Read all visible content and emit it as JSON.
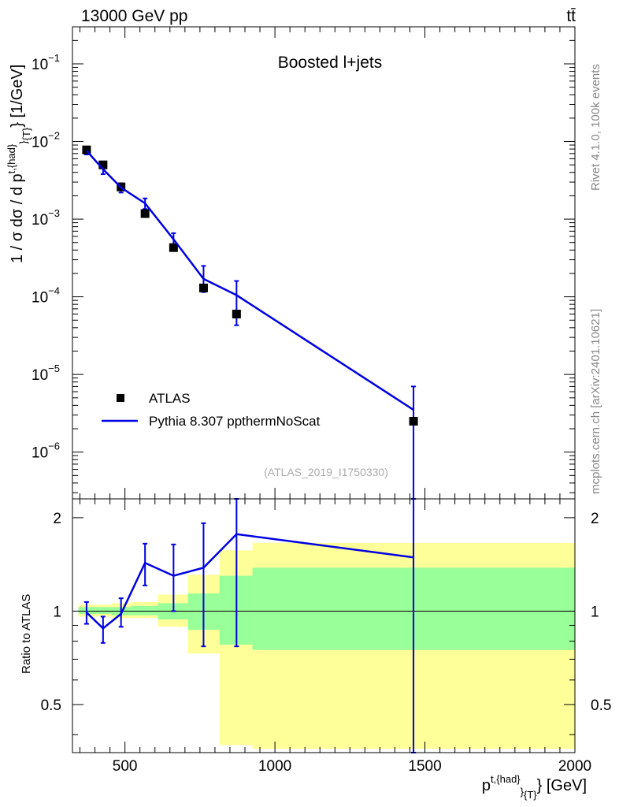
{
  "header": {
    "left": "13000 GeV pp",
    "right": "tt̄"
  },
  "side_text": {
    "rivet": "Rivet 4.1.0,  100k events",
    "mcplots": "mcplots.cern.ch [arXiv:2401.10621]"
  },
  "colors": {
    "mc": "#0000e0",
    "data": "#000000",
    "band_outer": "#ffff99",
    "band_inner": "#99ff99"
  },
  "chart_data": [
    {
      "type": "line",
      "panel": "main",
      "title": "Boosted l+jets",
      "analysis_tag": "(ATLAS_2019_I1750330)",
      "ylabel": "1 / σ dσ / d p^{t,{had}}_{T} [1/GeV]",
      "yscale": "log",
      "xlim": [
        325,
        2000
      ],
      "ylim": [
        2.5e-07,
        0.3
      ],
      "y_ticks": [
        {
          "value": 1e-06,
          "base": "10",
          "exp": "−6"
        },
        {
          "value": 1e-05,
          "base": "10",
          "exp": "−5"
        },
        {
          "value": 0.0001,
          "base": "10",
          "exp": "−4"
        },
        {
          "value": 0.001,
          "base": "10",
          "exp": "−3"
        },
        {
          "value": 0.01,
          "base": "10",
          "exp": "−2"
        },
        {
          "value": 0.1,
          "base": "10",
          "exp": "−1"
        }
      ],
      "legend": [
        {
          "label": "ATLAS",
          "kind": "marker"
        },
        {
          "label": "Pythia 8.307 ppthermNoScat",
          "kind": "line"
        }
      ],
      "data": {
        "name": "ATLAS",
        "x": [
          372,
          427,
          487,
          567,
          662,
          762,
          872,
          1462
        ],
        "y": [
          0.0078,
          0.005,
          0.0026,
          0.00118,
          0.00043,
          0.00013,
          6e-05,
          2.5e-06
        ]
      },
      "mc": {
        "name": "Pythia 8.307 ppthermNoScat",
        "x": [
          372,
          427,
          487,
          567,
          662,
          762,
          872,
          1462
        ],
        "y": [
          0.0076,
          0.0044,
          0.00255,
          0.0016,
          0.00055,
          0.00017,
          0.000105,
          3.5e-06
        ],
        "y_lo": [
          0.0068,
          0.0038,
          0.0022,
          0.00135,
          0.00045,
          0.000115,
          4.3e-05,
          2.5e-07
        ],
        "y_hi": [
          0.0084,
          0.005,
          0.0029,
          0.00185,
          0.00066,
          0.00025,
          0.00016,
          7e-06
        ]
      }
    },
    {
      "type": "line",
      "panel": "ratio",
      "ylabel": "Ratio to ATLAS",
      "xlabel": "p^{t,{had}}_{T} [GeV]",
      "xlim": [
        325,
        2000
      ],
      "ylim": [
        0.35,
        2.3
      ],
      "x_ticks": [
        "500",
        "1000",
        "1500",
        "2000"
      ],
      "y_ticks": [
        "0.5",
        "1",
        "2"
      ],
      "bins": [
        {
          "lo": 345,
          "hi": 400,
          "outer": [
            0.96,
            1.05
          ],
          "inner": [
            0.98,
            1.03
          ]
        },
        {
          "lo": 400,
          "hi": 455,
          "outer": [
            0.96,
            1.05
          ],
          "inner": [
            0.98,
            1.03
          ]
        },
        {
          "lo": 455,
          "hi": 520,
          "outer": [
            0.95,
            1.06
          ],
          "inner": [
            0.97,
            1.03
          ]
        },
        {
          "lo": 520,
          "hi": 610,
          "outer": [
            0.95,
            1.07
          ],
          "inner": [
            0.97,
            1.04
          ]
        },
        {
          "lo": 610,
          "hi": 710,
          "outer": [
            0.89,
            1.13
          ],
          "inner": [
            0.94,
            1.06
          ]
        },
        {
          "lo": 710,
          "hi": 815,
          "outer": [
            0.73,
            1.31
          ],
          "inner": [
            0.87,
            1.14
          ]
        },
        {
          "lo": 815,
          "hi": 925,
          "outer": [
            0.37,
            1.57
          ],
          "inner": [
            0.78,
            1.3
          ]
        },
        {
          "lo": 925,
          "hi": 2000,
          "outer": [
            0.36,
            1.66
          ],
          "inner": [
            0.75,
            1.38
          ]
        }
      ],
      "mc_ratio": {
        "x": [
          372,
          427,
          487,
          567,
          662,
          762,
          872,
          1462
        ],
        "y": [
          0.99,
          0.88,
          0.98,
          1.43,
          1.3,
          1.38,
          1.77,
          1.49
        ],
        "y_lo": [
          0.91,
          0.79,
          0.89,
          1.21,
          1.0,
          0.77,
          0.77,
          0.3
        ],
        "y_hi": [
          1.07,
          0.96,
          1.1,
          1.65,
          1.64,
          1.92,
          2.45,
          2.45
        ]
      }
    }
  ]
}
